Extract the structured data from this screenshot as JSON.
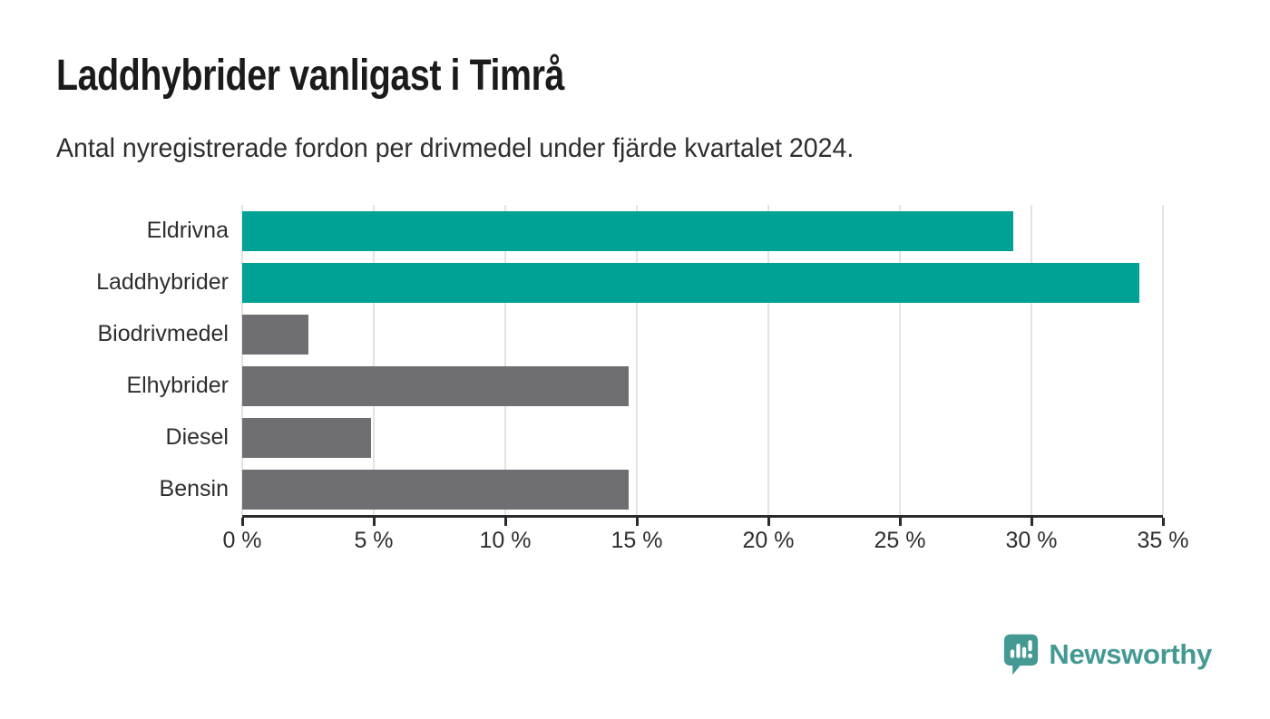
{
  "header": {
    "title": "Laddhybrider vanligast i Timrå",
    "subtitle": "Antal nyregistrerade fordon per drivmedel under fjärde kvartalet 2024."
  },
  "chart_data": {
    "type": "bar",
    "orientation": "horizontal",
    "title": "Laddhybrider vanligast i Timrå",
    "subtitle": "Antal nyregistrerade fordon per drivmedel under fjärde kvartalet 2024.",
    "categories": [
      "Eldrivna",
      "Laddhybrider",
      "Biodrivmedel",
      "Elhybrider",
      "Diesel",
      "Bensin"
    ],
    "values": [
      29.3,
      34.1,
      2.5,
      14.7,
      4.9,
      14.7
    ],
    "unit": "%",
    "xlim": [
      0,
      35
    ],
    "x_ticks": [
      "0 %",
      "5 %",
      "10 %",
      "15 %",
      "20 %",
      "25 %",
      "30 %",
      "35 %"
    ],
    "bar_colors": [
      "#00a296",
      "#00a296",
      "#6e6e73",
      "#6e6e73",
      "#6e6e73",
      "#6e6e73"
    ],
    "grid": "vertical",
    "legend": "none"
  },
  "colors": {
    "accent_teal": "#00a296",
    "bar_gray": "#6e6e73",
    "logo_teal": "#449a93",
    "grid": "#e3e3e3",
    "axis": "#2b2b2b",
    "text_dark": "#1b1b1b",
    "text_mid": "#2e2e2e"
  },
  "footer": {
    "brand": "Newsworthy",
    "logo_icon": "newsworthy-speech-bubble-chart-icon"
  }
}
